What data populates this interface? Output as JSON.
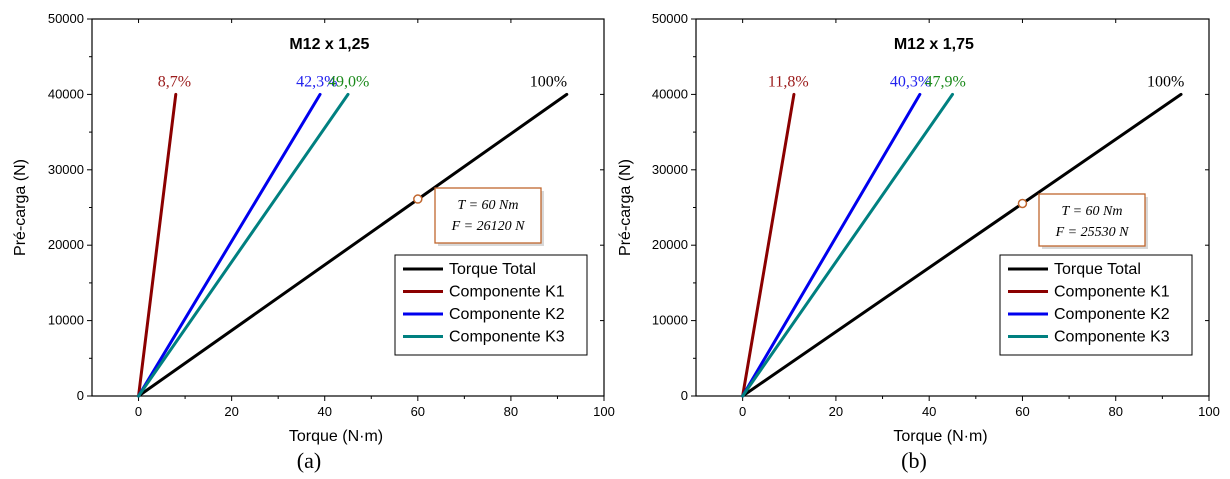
{
  "colors": {
    "total": "#000000",
    "k1": "#8b0000",
    "k2": "#0000ee",
    "k3": "#008080",
    "k1_label": "#9b1b1b",
    "k2_label": "#2222ee",
    "k3_label": "#1a8a1a",
    "annotation_border": "#c0662e",
    "marker": "#c0662e"
  },
  "chart_data": [
    {
      "type": "line",
      "panel_label": "(a)",
      "title": "M12 x 1,25",
      "xlabel": "Torque (N·m)",
      "ylabel": "Pré-carga (N)",
      "xlim": [
        -10,
        100
      ],
      "ylim": [
        0,
        50000
      ],
      "xticks": [
        0,
        20,
        40,
        60,
        80,
        100
      ],
      "yticks": [
        0,
        10000,
        20000,
        30000,
        40000,
        50000
      ],
      "grid": false,
      "legend_position": "lower-right",
      "series": [
        {
          "name": "Torque Total",
          "color_key": "total",
          "x": [
            0,
            92
          ],
          "y": [
            0,
            40000
          ],
          "end_label": "100%"
        },
        {
          "name": "Componente K1",
          "color_key": "k1",
          "x": [
            0,
            8
          ],
          "y": [
            0,
            40000
          ],
          "end_label": "8,7%"
        },
        {
          "name": "Componente K2",
          "color_key": "k2",
          "x": [
            0,
            39
          ],
          "y": [
            0,
            40000
          ],
          "end_label": "42,3%"
        },
        {
          "name": "Componente K3",
          "color_key": "k3",
          "x": [
            0,
            45
          ],
          "y": [
            0,
            40000
          ],
          "end_label": "49,0%"
        }
      ],
      "annotation": {
        "x": 60,
        "y": 26120,
        "line1": "T = 60 Nm",
        "line2": "F = 26120 N"
      }
    },
    {
      "type": "line",
      "panel_label": "(b)",
      "title": "M12 x 1,75",
      "xlabel": "Torque (N·m)",
      "ylabel": "Pré-carga (N)",
      "xlim": [
        -10,
        100
      ],
      "ylim": [
        0,
        50000
      ],
      "xticks": [
        0,
        20,
        40,
        60,
        80,
        100
      ],
      "yticks": [
        0,
        10000,
        20000,
        30000,
        40000,
        50000
      ],
      "grid": false,
      "legend_position": "lower-right",
      "series": [
        {
          "name": "Torque Total",
          "color_key": "total",
          "x": [
            0,
            94
          ],
          "y": [
            0,
            40000
          ],
          "end_label": "100%"
        },
        {
          "name": "Componente K1",
          "color_key": "k1",
          "x": [
            0,
            11
          ],
          "y": [
            0,
            40000
          ],
          "end_label": "11,8%"
        },
        {
          "name": "Componente K2",
          "color_key": "k2",
          "x": [
            0,
            38
          ],
          "y": [
            0,
            40000
          ],
          "end_label": "40,3%"
        },
        {
          "name": "Componente K3",
          "color_key": "k3",
          "x": [
            0,
            45
          ],
          "y": [
            0,
            40000
          ],
          "end_label": "47,9%"
        }
      ],
      "annotation": {
        "x": 60,
        "y": 25530,
        "line1": "T = 60 Nm",
        "line2": "F = 25530 N"
      }
    }
  ]
}
